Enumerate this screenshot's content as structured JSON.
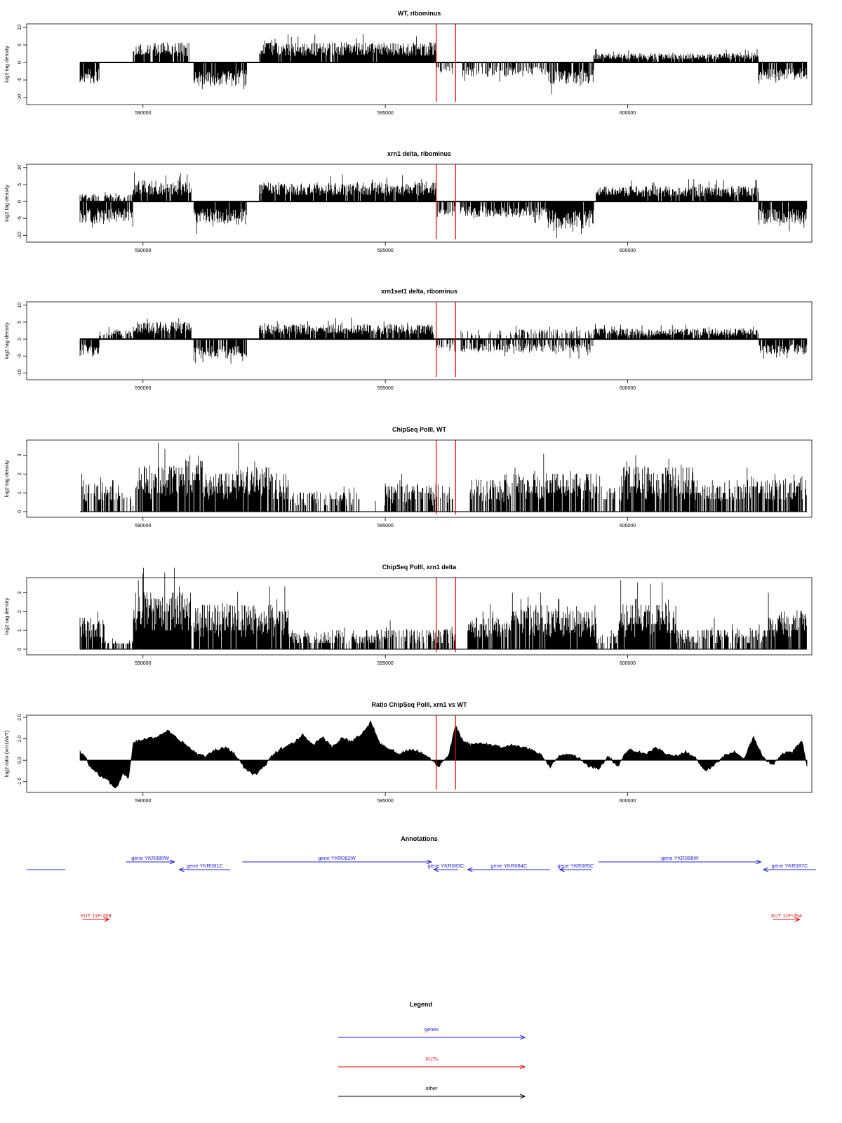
{
  "chart_data": [
    {
      "type": "bar",
      "title": "WT, ribominus",
      "ylabel": "log2 tag density",
      "ylim": [
        -12,
        11
      ],
      "yticks": [
        10,
        5,
        0,
        -5,
        -10
      ],
      "xlim": [
        587600,
        603800
      ],
      "xticks": [
        590000,
        595000,
        600000
      ],
      "markers_x": [
        596050,
        596450
      ],
      "series": [
        {
          "segments": [
            {
              "start": 588700,
              "end": 589100,
              "amp": -5,
              "density": 0.9
            },
            {
              "start": 589800,
              "end": 590950,
              "amp": 5,
              "density": 0.9
            },
            {
              "start": 591050,
              "end": 592150,
              "amp": -6,
              "density": 0.95
            },
            {
              "start": 592400,
              "end": 596050,
              "amp": 5,
              "density": 0.95
            },
            {
              "start": 596050,
              "end": 596400,
              "amp": -3,
              "density": 0.4
            },
            {
              "start": 596550,
              "end": 598350,
              "amp": -3.5,
              "density": 0.55
            },
            {
              "start": 598350,
              "end": 599300,
              "amp": -5.5,
              "density": 0.8
            },
            {
              "start": 599300,
              "end": 602700,
              "amp": 2.3,
              "density": 0.9
            },
            {
              "start": 602700,
              "end": 603700,
              "amp": -4.5,
              "density": 0.9
            }
          ]
        }
      ]
    },
    {
      "type": "bar",
      "title": "xrn1 delta, ribominus",
      "ylabel": "log2 tag density",
      "ylim": [
        -12,
        11
      ],
      "yticks": [
        10,
        5,
        0,
        -5,
        -10
      ],
      "xlim": [
        587600,
        603800
      ],
      "xticks": [
        590000,
        595000,
        600000
      ],
      "markers_x": [
        596050,
        596450
      ],
      "series": [
        {
          "segments": [
            {
              "start": 588700,
              "end": 589800,
              "amp": -5.5,
              "density": 0.95
            },
            {
              "start": 588700,
              "end": 589800,
              "amp": 2,
              "density": 0.5
            },
            {
              "start": 589800,
              "end": 591000,
              "amp": 5.5,
              "density": 0.95
            },
            {
              "start": 591050,
              "end": 592150,
              "amp": -6,
              "density": 0.95
            },
            {
              "start": 592400,
              "end": 596050,
              "amp": 5,
              "density": 0.95
            },
            {
              "start": 596050,
              "end": 596450,
              "amp": -4,
              "density": 0.6
            },
            {
              "start": 596550,
              "end": 598350,
              "amp": -4,
              "density": 0.8
            },
            {
              "start": 598350,
              "end": 599300,
              "amp": -7,
              "density": 0.95
            },
            {
              "start": 599350,
              "end": 602700,
              "amp": 4,
              "density": 0.95
            },
            {
              "start": 602700,
              "end": 603700,
              "amp": -6,
              "density": 0.95
            }
          ]
        }
      ]
    },
    {
      "type": "bar",
      "title": "xrn1set1 delta, ribominus",
      "ylabel": "log2 tag density",
      "ylim": [
        -12,
        11
      ],
      "yticks": [
        10,
        5,
        0,
        -5,
        -10
      ],
      "xlim": [
        587600,
        603800
      ],
      "xticks": [
        590000,
        595000,
        600000
      ],
      "markers_x": [
        596050,
        596450
      ],
      "series": [
        {
          "segments": [
            {
              "start": 588700,
              "end": 589100,
              "amp": -4.5,
              "density": 0.85
            },
            {
              "start": 589100,
              "end": 589800,
              "amp": 2.5,
              "density": 0.4
            },
            {
              "start": 589800,
              "end": 591000,
              "amp": 4.5,
              "density": 0.9
            },
            {
              "start": 591050,
              "end": 592150,
              "amp": -5,
              "density": 0.9
            },
            {
              "start": 592400,
              "end": 596000,
              "amp": 3.8,
              "density": 0.9
            },
            {
              "start": 596050,
              "end": 596450,
              "amp": -2.5,
              "density": 0.4
            },
            {
              "start": 596550,
              "end": 599300,
              "amp": -3.5,
              "density": 0.6
            },
            {
              "start": 596550,
              "end": 599300,
              "amp": 2.5,
              "density": 0.35
            },
            {
              "start": 599300,
              "end": 602700,
              "amp": 2.8,
              "density": 0.9
            },
            {
              "start": 602700,
              "end": 603700,
              "amp": -4,
              "density": 0.9
            }
          ]
        }
      ]
    },
    {
      "type": "bar",
      "title": "ChipSeq PolII, WT",
      "ylabel": "log2 tag density",
      "ylim": [
        -0.3,
        3.8
      ],
      "yticks": [
        0,
        1,
        2,
        3
      ],
      "xlim": [
        587600,
        603800
      ],
      "xticks": [
        590000,
        595000,
        600000
      ],
      "markers_x": [
        596050,
        596450
      ],
      "series": [
        {
          "segments": [
            {
              "start": 588700,
              "end": 589600,
              "amp": 1.4,
              "density": 0.6
            },
            {
              "start": 589600,
              "end": 589800,
              "amp": 0.8,
              "density": 0.3
            },
            {
              "start": 589850,
              "end": 590900,
              "amp": 2.2,
              "density": 0.9
            },
            {
              "start": 590900,
              "end": 591250,
              "amp": 2.6,
              "density": 0.9
            },
            {
              "start": 591250,
              "end": 591900,
              "amp": 1.8,
              "density": 0.9
            },
            {
              "start": 591900,
              "end": 592650,
              "amp": 2.2,
              "density": 0.9
            },
            {
              "start": 592650,
              "end": 593000,
              "amp": 1.8,
              "density": 0.8
            },
            {
              "start": 593000,
              "end": 594500,
              "amp": 0.9,
              "density": 0.5
            },
            {
              "start": 594600,
              "end": 595000,
              "amp": 0.5,
              "density": 0.15
            },
            {
              "start": 595000,
              "end": 596400,
              "amp": 1.3,
              "density": 0.6
            },
            {
              "start": 596750,
              "end": 597700,
              "amp": 1.5,
              "density": 0.7
            },
            {
              "start": 597700,
              "end": 599400,
              "amp": 1.9,
              "density": 0.85
            },
            {
              "start": 599400,
              "end": 599900,
              "amp": 1.2,
              "density": 0.5
            },
            {
              "start": 599900,
              "end": 601400,
              "amp": 2.1,
              "density": 0.9
            },
            {
              "start": 601400,
              "end": 602600,
              "amp": 1.4,
              "density": 0.7
            },
            {
              "start": 602600,
              "end": 603700,
              "amp": 1.7,
              "density": 0.8
            }
          ]
        }
      ]
    },
    {
      "type": "bar",
      "title": "ChipSeq PolII, xrn1 delta",
      "ylabel": "log2 tag density",
      "ylim": [
        -0.3,
        3.8
      ],
      "yticks": [
        0,
        1,
        2,
        3
      ],
      "xlim": [
        587600,
        603800
      ],
      "xticks": [
        590000,
        595000,
        600000
      ],
      "markers_x": [
        596050,
        596450
      ],
      "series": [
        {
          "segments": [
            {
              "start": 588700,
              "end": 589200,
              "amp": 1.4,
              "density": 0.9
            },
            {
              "start": 589200,
              "end": 589800,
              "amp": 0.4,
              "density": 0.5
            },
            {
              "start": 589800,
              "end": 591000,
              "amp": 2.7,
              "density": 1.0
            },
            {
              "start": 591050,
              "end": 592000,
              "amp": 2.1,
              "density": 0.95
            },
            {
              "start": 592000,
              "end": 593000,
              "amp": 2.0,
              "density": 0.95
            },
            {
              "start": 593000,
              "end": 594800,
              "amp": 0.8,
              "density": 0.7
            },
            {
              "start": 594800,
              "end": 596450,
              "amp": 1.0,
              "density": 0.6
            },
            {
              "start": 596700,
              "end": 597600,
              "amp": 1.5,
              "density": 0.9
            },
            {
              "start": 597600,
              "end": 599350,
              "amp": 2.0,
              "density": 0.95
            },
            {
              "start": 599350,
              "end": 599800,
              "amp": 0.7,
              "density": 0.5
            },
            {
              "start": 599800,
              "end": 601000,
              "amp": 2.2,
              "density": 0.95
            },
            {
              "start": 601000,
              "end": 602800,
              "amp": 1.0,
              "density": 0.6
            },
            {
              "start": 602800,
              "end": 603700,
              "amp": 1.8,
              "density": 0.95
            }
          ]
        }
      ]
    },
    {
      "type": "area",
      "title": "Ratio ChipSeq PolII, xrn1 vs WT",
      "ylabel": "log2 ratio (xrn1/WT)",
      "ylim": [
        -1.5,
        2.1
      ],
      "yticks": [
        2.0,
        1.0,
        0.0,
        -1.0
      ],
      "xlim": [
        587600,
        603800
      ],
      "xticks": [
        590000,
        595000,
        600000
      ],
      "markers_x": [
        596050,
        596450
      ],
      "x": [
        588700,
        588800,
        588900,
        589000,
        589100,
        589200,
        589300,
        589400,
        589500,
        589600,
        589700,
        589800,
        589900,
        590100,
        590300,
        590500,
        590700,
        590900,
        591100,
        591300,
        591500,
        591700,
        591900,
        592100,
        592300,
        592500,
        592700,
        592900,
        593100,
        593300,
        593500,
        593700,
        593900,
        594100,
        594300,
        594500,
        594700,
        594900,
        595100,
        595300,
        595500,
        595700,
        595900,
        596100,
        596300,
        596450,
        596600,
        596800,
        597000,
        597200,
        597400,
        597600,
        597800,
        598000,
        598200,
        598400,
        598600,
        598800,
        599000,
        599200,
        599400,
        599600,
        599800,
        600000,
        600200,
        600400,
        600600,
        600800,
        601000,
        601200,
        601400,
        601600,
        601800,
        602000,
        602200,
        602400,
        602600,
        602800,
        603000,
        603200,
        603400,
        603600,
        603700
      ],
      "y": [
        0.4,
        0.2,
        -0.3,
        -0.5,
        -0.7,
        -0.8,
        -1.0,
        -1.3,
        -1.1,
        -0.6,
        -0.9,
        0.8,
        0.9,
        1.0,
        1.1,
        1.4,
        1.0,
        0.7,
        0.3,
        0.2,
        0.5,
        0.6,
        0.3,
        -0.4,
        -0.7,
        -0.3,
        0.3,
        0.6,
        0.8,
        1.2,
        0.7,
        1.1,
        0.6,
        1.0,
        0.9,
        1.2,
        1.8,
        0.8,
        0.5,
        0.3,
        0.5,
        0.4,
        0.1,
        -0.3,
        0.2,
        1.6,
        0.9,
        0.7,
        0.8,
        0.7,
        0.6,
        0.7,
        0.6,
        0.5,
        0.3,
        -0.3,
        0.2,
        0.3,
        0.1,
        -0.3,
        -0.4,
        0.2,
        -0.3,
        0.5,
        0.4,
        0.3,
        0.6,
        0.3,
        0.2,
        0.4,
        0.1,
        -0.5,
        -0.2,
        0.2,
        0.4,
        0.1,
        1.1,
        0.1,
        -0.2,
        0.3,
        0.4,
        0.9,
        -0.3
      ]
    },
    {
      "type": "annotation-track",
      "title": "Annotations",
      "xlim": [
        587600,
        603800
      ],
      "features": [
        {
          "label": "",
          "kind": "gene",
          "start": 587600,
          "end": 588400,
          "strand": "none",
          "row": 1
        },
        {
          "label": "gene YKR080W",
          "kind": "gene",
          "start": 589650,
          "end": 590650,
          "strand": "+",
          "row": 0
        },
        {
          "label": "gene YKR081C",
          "kind": "gene",
          "start": 590750,
          "end": 591800,
          "strand": "-",
          "row": 1
        },
        {
          "label": "gene YKR082W",
          "kind": "gene",
          "start": 592050,
          "end": 595950,
          "strand": "+",
          "row": 0
        },
        {
          "label": "gene YKR083C",
          "kind": "gene",
          "start": 596000,
          "end": 596500,
          "strand": "-",
          "row": 1
        },
        {
          "label": "gene YKR084C",
          "kind": "gene",
          "start": 596700,
          "end": 598400,
          "strand": "-",
          "row": 1
        },
        {
          "label": "gene YKR085C",
          "kind": "gene",
          "start": 598600,
          "end": 599250,
          "strand": "-",
          "row": 1
        },
        {
          "label": "gene YKR086W",
          "kind": "gene",
          "start": 599400,
          "end": 602750,
          "strand": "+",
          "row": 0
        },
        {
          "label": "gene YKR087C",
          "kind": "gene",
          "start": 602800,
          "end": 603900,
          "strand": "-",
          "row": 1
        },
        {
          "label": "XUT 11F-259",
          "kind": "xut",
          "start": 588750,
          "end": 589300,
          "strand": "+",
          "row": 2
        },
        {
          "label": "XUT 11F-264",
          "kind": "xut",
          "start": 603000,
          "end": 603550,
          "strand": "+",
          "row": 2
        }
      ]
    }
  ],
  "legend": {
    "title": "Legend",
    "items": [
      {
        "label": "genes",
        "color": "#2222dd"
      },
      {
        "label": "XUTs",
        "color": "#dd1111"
      },
      {
        "label": "other",
        "color": "#000000"
      }
    ]
  },
  "colors": {
    "bars": "#000000",
    "marker": "#ee0000",
    "gene": "#2222dd",
    "xut": "#dd1111",
    "other": "#000000"
  }
}
